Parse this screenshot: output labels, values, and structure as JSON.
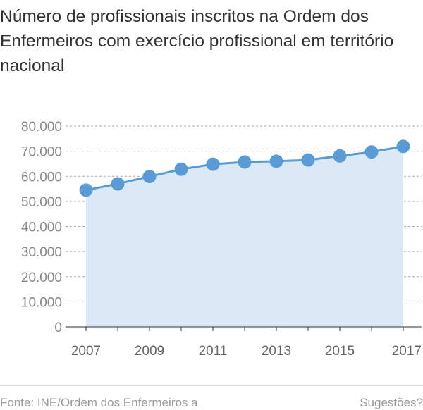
{
  "chart_data": {
    "type": "area",
    "title": "Número de profissionais inscritos na Ordem dos Enfermeiros com exercício profissional em território nacional",
    "x": [
      2007,
      2008,
      2009,
      2010,
      2011,
      2012,
      2013,
      2014,
      2015,
      2016,
      2017
    ],
    "values": [
      54500,
      57000,
      59900,
      62800,
      64800,
      65700,
      66000,
      66500,
      68100,
      69700,
      71900
    ],
    "x_tick_labels": [
      "2007",
      "2009",
      "2011",
      "2013",
      "2015",
      "2017"
    ],
    "y_ticks": [
      0,
      10000,
      20000,
      30000,
      40000,
      50000,
      60000,
      70000,
      80000
    ],
    "y_tick_labels": [
      "0",
      "10.000",
      "20.000",
      "30.000",
      "40.000",
      "50.000",
      "60.000",
      "70.000",
      "80.000"
    ],
    "ylim": [
      0,
      80000
    ],
    "xlim": [
      2007,
      2017
    ],
    "xlabel": "",
    "ylabel": "",
    "grid": "horizontal-dashed",
    "line_color": "#5b9bd5",
    "marker_color": "#5b9bd5",
    "fill_color": "#dbe9f6"
  },
  "footer": {
    "source": "Fonte: INE/Ordem dos Enfermeiros a",
    "suggestions": "Sugestões?"
  }
}
